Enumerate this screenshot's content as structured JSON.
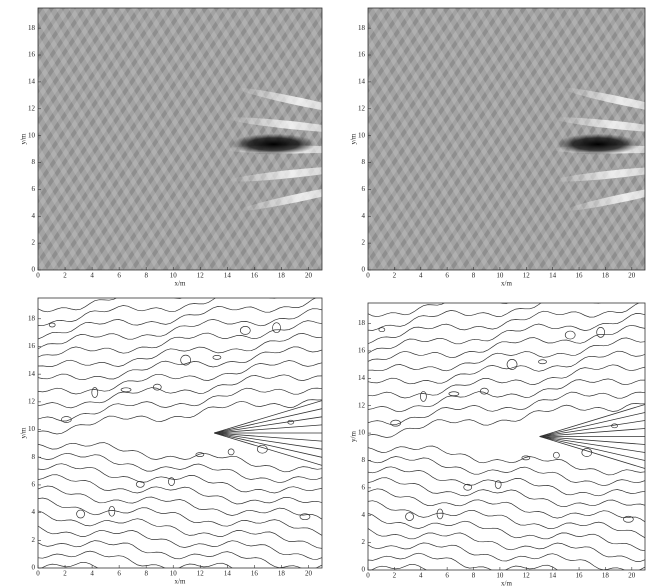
{
  "chart_data": [
    {
      "type": "heatmap",
      "xlabel": "x/m",
      "ylabel": "y/m",
      "xlim": [
        0,
        21
      ],
      "ylim": [
        0,
        19.5
      ],
      "xticks": [
        0,
        2,
        4,
        6,
        8,
        10,
        12,
        14,
        16,
        18,
        20
      ],
      "yticks": [
        0,
        2,
        4,
        6,
        8,
        10,
        12,
        14,
        16,
        18
      ]
    },
    {
      "type": "heatmap",
      "xlabel": "x/m",
      "ylabel": "y/m",
      "xlim": [
        0,
        21
      ],
      "ylim": [
        0,
        19.5
      ],
      "xticks": [
        0,
        2,
        4,
        6,
        8,
        10,
        12,
        14,
        16,
        18,
        20
      ],
      "yticks": [
        0,
        2,
        4,
        6,
        8,
        10,
        12,
        14,
        16,
        18
      ]
    },
    {
      "type": "contour",
      "xlabel": "x/m",
      "ylabel": "y/m",
      "xlim": [
        0,
        21
      ],
      "ylim": [
        0,
        19.5
      ],
      "xticks": [
        0,
        2,
        4,
        6,
        8,
        10,
        12,
        14,
        16,
        18,
        20
      ],
      "yticks": [
        0,
        2,
        4,
        6,
        8,
        10,
        12,
        14,
        16,
        18
      ]
    },
    {
      "type": "contour",
      "xlabel": "x/m",
      "ylabel": "y/m",
      "xlim": [
        0,
        21
      ],
      "ylim": [
        0,
        19.5
      ],
      "xticks": [
        0,
        2,
        4,
        6,
        8,
        10,
        12,
        14,
        16,
        18,
        20
      ],
      "yticks": [
        0,
        2,
        4,
        6,
        8,
        10,
        12,
        14,
        16,
        18
      ]
    }
  ]
}
